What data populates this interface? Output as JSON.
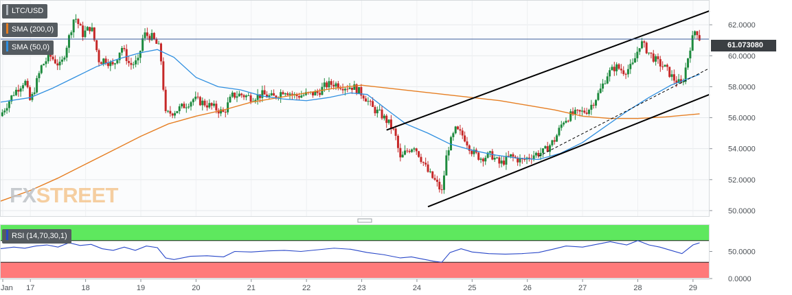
{
  "brand": "FXSTREET",
  "brand_prefix": "FX",
  "brand_suffix": "STREET",
  "legend": {
    "symbol": "LTC/USD",
    "sma200_label": "SMA (200,0)",
    "sma50_label": "SMA (50,0)",
    "rsi_label": "RSI (14,70,30,1)"
  },
  "colors": {
    "up_candle": "#1e8a3e",
    "down_candle": "#c62828",
    "sma200": "#e67e22",
    "sma50": "#2f8fe0",
    "rsi_line": "#2746c8",
    "rsi_overbought_zone": "#5ee85e",
    "rsi_oversold_zone": "#ff7a7a",
    "channel": "#000000",
    "price_line": "#3b5b9a"
  },
  "chart_data": [
    {
      "type": "candlestick",
      "symbol": "LTC/USD",
      "current_price_label": "61.073080",
      "current_price": 61.07308,
      "ylim": [
        49.6,
        63.6
      ],
      "yticks": [
        {
          "value": 50,
          "label": "50.0000"
        },
        {
          "value": 52,
          "label": "52.0000"
        },
        {
          "value": 54,
          "label": "54.0000"
        },
        {
          "value": 56,
          "label": "56.0000"
        },
        {
          "value": 58,
          "label": "58.0000"
        },
        {
          "value": 60,
          "label": "60.0000"
        },
        {
          "value": 62,
          "label": "62.0000"
        }
      ],
      "xlim": [
        16.45,
        29.3
      ],
      "xticks": [
        {
          "value": 16.5,
          "label": "Jan"
        },
        {
          "value": 17,
          "label": "17"
        },
        {
          "value": 18,
          "label": "18"
        },
        {
          "value": 19,
          "label": "19"
        },
        {
          "value": 20,
          "label": "20"
        },
        {
          "value": 21,
          "label": "21"
        },
        {
          "value": 22,
          "label": "22"
        },
        {
          "value": 23,
          "label": "23"
        },
        {
          "value": 24,
          "label": "24"
        },
        {
          "value": 25,
          "label": "25"
        },
        {
          "value": 26,
          "label": "26"
        },
        {
          "value": 27,
          "label": "27"
        },
        {
          "value": 28,
          "label": "28"
        },
        {
          "value": 29,
          "label": "29"
        }
      ],
      "close_path": [
        [
          16.45,
          56.1
        ],
        [
          16.7,
          57.6
        ],
        [
          16.9,
          58.4
        ],
        [
          17.0,
          57.0
        ],
        [
          17.2,
          59.3
        ],
        [
          17.35,
          60.0
        ],
        [
          17.55,
          59.3
        ],
        [
          17.7,
          61.2
        ],
        [
          17.8,
          62.6
        ],
        [
          17.95,
          61.4
        ],
        [
          18.1,
          61.9
        ],
        [
          18.25,
          59.6
        ],
        [
          18.35,
          59.8
        ],
        [
          18.5,
          59.3
        ],
        [
          18.65,
          60.6
        ],
        [
          18.8,
          59.4
        ],
        [
          18.95,
          59.6
        ],
        [
          19.05,
          61.4
        ],
        [
          19.2,
          61.2
        ],
        [
          19.35,
          60.4
        ],
        [
          19.45,
          56.2
        ],
        [
          19.6,
          56.4
        ],
        [
          19.8,
          56.8
        ],
        [
          19.95,
          57.2
        ],
        [
          20.1,
          57.0
        ],
        [
          20.3,
          56.7
        ],
        [
          20.5,
          56.3
        ],
        [
          20.65,
          57.4
        ],
        [
          20.8,
          57.5
        ],
        [
          21.0,
          57.3
        ],
        [
          21.2,
          57.5
        ],
        [
          21.4,
          57.3
        ],
        [
          21.6,
          57.8
        ],
        [
          21.8,
          57.4
        ],
        [
          22.0,
          57.5
        ],
        [
          22.2,
          57.6
        ],
        [
          22.35,
          58.1
        ],
        [
          22.5,
          58.2
        ],
        [
          22.7,
          58.0
        ],
        [
          22.85,
          58.0
        ],
        [
          23.05,
          57.4
        ],
        [
          23.2,
          56.6
        ],
        [
          23.35,
          56.2
        ],
        [
          23.5,
          55.6
        ],
        [
          23.6,
          55.0
        ],
        [
          23.7,
          53.3
        ],
        [
          23.8,
          53.8
        ],
        [
          23.95,
          54.2
        ],
        [
          24.1,
          53.2
        ],
        [
          24.2,
          52.5
        ],
        [
          24.35,
          51.8
        ],
        [
          24.45,
          51.2
        ],
        [
          24.55,
          53.9
        ],
        [
          24.7,
          55.2
        ],
        [
          24.85,
          54.8
        ],
        [
          25.0,
          53.8
        ],
        [
          25.15,
          53.4
        ],
        [
          25.35,
          53.6
        ],
        [
          25.5,
          53.0
        ],
        [
          25.7,
          53.5
        ],
        [
          25.9,
          53.2
        ],
        [
          26.1,
          53.6
        ],
        [
          26.3,
          53.8
        ],
        [
          26.5,
          54.6
        ],
        [
          26.65,
          55.8
        ],
        [
          26.8,
          56.2
        ],
        [
          26.95,
          56.3
        ],
        [
          27.1,
          56.5
        ],
        [
          27.3,
          57.6
        ],
        [
          27.45,
          58.8
        ],
        [
          27.6,
          59.3
        ],
        [
          27.75,
          59.0
        ],
        [
          27.9,
          59.3
        ],
        [
          28.05,
          60.9
        ],
        [
          28.2,
          60.2
        ],
        [
          28.35,
          59.6
        ],
        [
          28.5,
          59.2
        ],
        [
          28.65,
          58.5
        ],
        [
          28.8,
          58.1
        ],
        [
          28.95,
          60.6
        ],
        [
          29.05,
          61.8
        ],
        [
          29.12,
          61.1
        ]
      ],
      "sma200": [
        [
          16.45,
          50.6
        ],
        [
          17.0,
          51.3
        ],
        [
          17.5,
          52.1
        ],
        [
          18.0,
          53.0
        ],
        [
          18.5,
          53.9
        ],
        [
          19.0,
          54.8
        ],
        [
          19.5,
          55.6
        ],
        [
          20.0,
          56.1
        ],
        [
          20.5,
          56.5
        ],
        [
          21.0,
          57.0
        ],
        [
          21.5,
          57.3
        ],
        [
          22.0,
          57.6
        ],
        [
          22.5,
          57.9
        ],
        [
          23.0,
          58.1
        ],
        [
          23.5,
          57.9
        ],
        [
          24.0,
          57.7
        ],
        [
          24.5,
          57.5
        ],
        [
          25.0,
          57.3
        ],
        [
          25.5,
          57.1
        ],
        [
          26.0,
          56.8
        ],
        [
          26.5,
          56.5
        ],
        [
          27.0,
          56.1
        ],
        [
          27.5,
          55.95
        ],
        [
          28.0,
          55.95
        ],
        [
          28.5,
          56.05
        ],
        [
          29.12,
          56.25
        ]
      ],
      "sma50": [
        [
          16.45,
          57.0
        ],
        [
          17.0,
          57.3
        ],
        [
          17.4,
          57.9
        ],
        [
          17.8,
          58.6
        ],
        [
          18.2,
          59.3
        ],
        [
          18.6,
          59.8
        ],
        [
          19.0,
          60.2
        ],
        [
          19.3,
          60.4
        ],
        [
          19.6,
          59.9
        ],
        [
          20.0,
          58.6
        ],
        [
          20.4,
          58.0
        ],
        [
          20.8,
          57.8
        ],
        [
          21.2,
          57.4
        ],
        [
          21.6,
          57.2
        ],
        [
          22.0,
          57.1
        ],
        [
          22.4,
          57.3
        ],
        [
          22.8,
          57.6
        ],
        [
          23.1,
          57.5
        ],
        [
          23.5,
          56.4
        ],
        [
          23.8,
          55.6
        ],
        [
          24.2,
          55.0
        ],
        [
          24.6,
          54.3
        ],
        [
          25.0,
          53.9
        ],
        [
          25.4,
          53.6
        ],
        [
          25.8,
          53.4
        ],
        [
          26.2,
          53.3
        ],
        [
          26.6,
          53.7
        ],
        [
          27.0,
          54.4
        ],
        [
          27.4,
          55.4
        ],
        [
          27.8,
          56.4
        ],
        [
          28.2,
          57.3
        ],
        [
          28.6,
          58.1
        ],
        [
          29.12,
          58.8
        ]
      ],
      "channel_upper": [
        [
          23.45,
          55.2
        ],
        [
          29.3,
          62.9
        ]
      ],
      "channel_lower": [
        [
          24.2,
          50.25
        ],
        [
          29.3,
          57.5
        ]
      ],
      "midline_dashed": [
        [
          26.2,
          53.5
        ],
        [
          29.3,
          59.2
        ]
      ]
    },
    {
      "type": "line",
      "name": "RSI (14,70,30,1)",
      "ylim": [
        0,
        100
      ],
      "overbought": 70,
      "oversold": 30,
      "yticks": [
        {
          "value": 50,
          "label": "50.0000"
        },
        {
          "value": 0,
          "label": "0.0000"
        }
      ],
      "points": [
        [
          16.45,
          55
        ],
        [
          16.7,
          58
        ],
        [
          16.9,
          56
        ],
        [
          17.1,
          60
        ],
        [
          17.3,
          62
        ],
        [
          17.5,
          58
        ],
        [
          17.7,
          66
        ],
        [
          17.9,
          61
        ],
        [
          18.1,
          63
        ],
        [
          18.3,
          55
        ],
        [
          18.5,
          52
        ],
        [
          18.7,
          58
        ],
        [
          18.9,
          52
        ],
        [
          19.1,
          60
        ],
        [
          19.3,
          57
        ],
        [
          19.45,
          38
        ],
        [
          19.6,
          35
        ],
        [
          19.9,
          41
        ],
        [
          20.2,
          42
        ],
        [
          20.5,
          40
        ],
        [
          20.7,
          50
        ],
        [
          21.0,
          49
        ],
        [
          21.3,
          51
        ],
        [
          21.6,
          52
        ],
        [
          21.9,
          50
        ],
        [
          22.2,
          53
        ],
        [
          22.5,
          56
        ],
        [
          22.8,
          54
        ],
        [
          23.1,
          48
        ],
        [
          23.4,
          44
        ],
        [
          23.7,
          38
        ],
        [
          23.9,
          40
        ],
        [
          24.1,
          36
        ],
        [
          24.3,
          32
        ],
        [
          24.45,
          30
        ],
        [
          24.6,
          48
        ],
        [
          24.8,
          55
        ],
        [
          25.0,
          49
        ],
        [
          25.3,
          46
        ],
        [
          25.6,
          45
        ],
        [
          25.9,
          46
        ],
        [
          26.2,
          48
        ],
        [
          26.5,
          55
        ],
        [
          26.7,
          60
        ],
        [
          27.0,
          58
        ],
        [
          27.3,
          64
        ],
        [
          27.5,
          68
        ],
        [
          27.8,
          62
        ],
        [
          28.0,
          70
        ],
        [
          28.2,
          62
        ],
        [
          28.4,
          58
        ],
        [
          28.6,
          52
        ],
        [
          28.8,
          46
        ],
        [
          29.0,
          62
        ],
        [
          29.12,
          66
        ]
      ]
    }
  ]
}
